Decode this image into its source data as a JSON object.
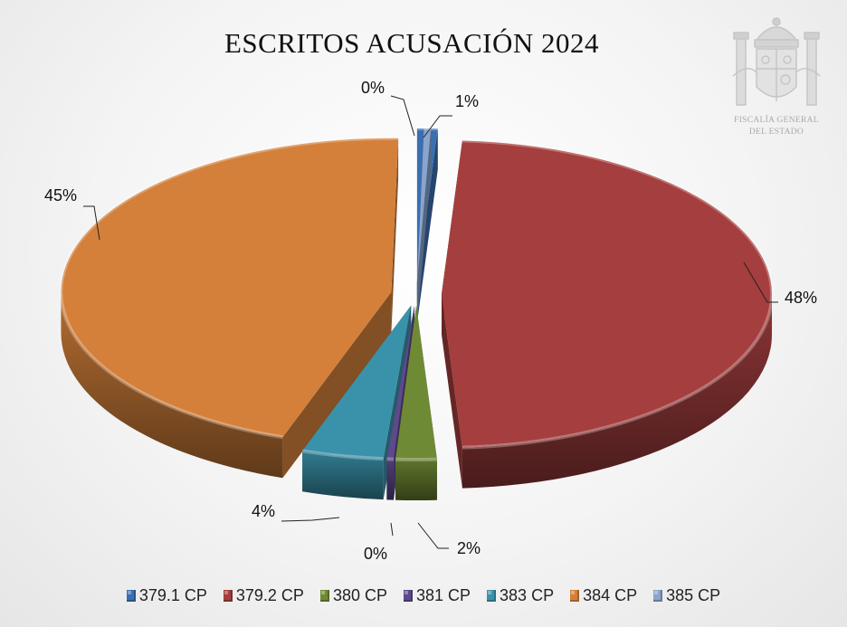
{
  "chart_data": {
    "type": "pie",
    "title": "ESCRITOS ACUSACIÓN 2024",
    "categories": [
      "379.1 CP",
      "379.2 CP",
      "380 CP",
      "381 CP",
      "383 CP",
      "384 CP",
      "385 CP"
    ],
    "values": [
      1,
      48,
      2,
      0,
      4,
      45,
      0
    ],
    "data_labels": [
      "1%",
      "48%",
      "2%",
      "0%",
      "4%",
      "45%",
      "0%"
    ],
    "colors": [
      "#3a6fb0",
      "#a53e3e",
      "#6f8a34",
      "#5d4a8a",
      "#3a92aa",
      "#d4803a",
      "#8aa4cc"
    ],
    "legend_position": "bottom",
    "style": "3d-exploded"
  },
  "emblem": {
    "line1": "FISCALÍA GENERAL",
    "line2": "DEL ESTADO"
  }
}
